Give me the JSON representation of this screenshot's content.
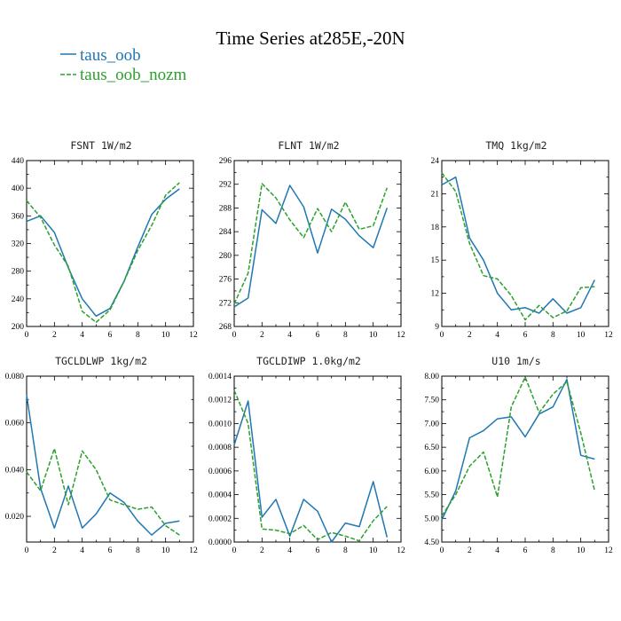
{
  "figure": {
    "title": "Time Series at285E,-20N"
  },
  "legend": [
    {
      "name": "taus_oob",
      "color": "#1f77b4",
      "dashed": false
    },
    {
      "name": "taus_oob_nozm",
      "color": "#2ca02c",
      "dashed": true
    }
  ],
  "chart_data": [
    {
      "type": "line",
      "title": "FSNT   1W/m2",
      "x": [
        0,
        1,
        2,
        3,
        4,
        5,
        6,
        7,
        8,
        9,
        10,
        11
      ],
      "xlim": [
        0,
        12
      ],
      "xticks": [
        0,
        2,
        4,
        6,
        8,
        10,
        12
      ],
      "ylim": [
        200,
        440
      ],
      "yticks": [
        200,
        240,
        280,
        320,
        360,
        400,
        440
      ],
      "ytick_labels": [
        "200",
        "240",
        "280",
        "320",
        "360",
        "400",
        "440"
      ],
      "series": [
        {
          "name": "taus_oob",
          "values": [
            352,
            360,
            336,
            285,
            240,
            215,
            226,
            265,
            315,
            362,
            384,
            399
          ]
        },
        {
          "name": "taus_oob_nozm",
          "values": [
            382,
            358,
            318,
            287,
            222,
            206,
            224,
            265,
            310,
            346,
            390,
            408
          ]
        }
      ]
    },
    {
      "type": "line",
      "title": "FLNT   1W/m2",
      "x": [
        0,
        1,
        2,
        3,
        4,
        5,
        6,
        7,
        8,
        9,
        10,
        11
      ],
      "xlim": [
        0,
        12
      ],
      "xticks": [
        0,
        2,
        4,
        6,
        8,
        10,
        12
      ],
      "ylim": [
        268,
        296
      ],
      "yticks": [
        268,
        272,
        276,
        280,
        284,
        288,
        292,
        296
      ],
      "ytick_labels": [
        "268",
        "272",
        "276",
        "280",
        "284",
        "288",
        "292",
        "296"
      ],
      "series": [
        {
          "name": "taus_oob",
          "values": [
            271.3,
            272.8,
            287.7,
            285.4,
            291.8,
            288.2,
            280.4,
            287.8,
            286.1,
            283.3,
            281.3,
            288.0
          ]
        },
        {
          "name": "taus_oob_nozm",
          "values": [
            271.8,
            277.0,
            292.1,
            289.7,
            286.0,
            283.0,
            287.9,
            284.0,
            289.0,
            284.4,
            285.0,
            291.4
          ]
        }
      ]
    },
    {
      "type": "line",
      "title": "TMQ   1kg/m2",
      "x": [
        0,
        1,
        2,
        3,
        4,
        5,
        6,
        7,
        8,
        9,
        10,
        11
      ],
      "xlim": [
        0,
        12
      ],
      "xticks": [
        0,
        2,
        4,
        6,
        8,
        10,
        12
      ],
      "ylim": [
        9,
        24
      ],
      "yticks": [
        9,
        12,
        15,
        18,
        21,
        24
      ],
      "ytick_labels": [
        "9",
        "12",
        "15",
        "18",
        "21",
        "24"
      ],
      "series": [
        {
          "name": "taus_oob",
          "values": [
            21.8,
            22.5,
            17.0,
            15.0,
            12.0,
            10.5,
            10.7,
            10.2,
            11.5,
            10.2,
            10.7,
            13.2
          ]
        },
        {
          "name": "taus_oob_nozm",
          "values": [
            22.9,
            21.2,
            16.5,
            13.6,
            13.3,
            11.8,
            9.6,
            10.9,
            9.8,
            10.4,
            12.5,
            12.6
          ]
        }
      ]
    },
    {
      "type": "line",
      "title": "TGCLDLWP   1kg/m2",
      "x": [
        0,
        1,
        2,
        3,
        4,
        5,
        6,
        7,
        8,
        9,
        10,
        11
      ],
      "xlim": [
        0,
        12
      ],
      "xticks": [
        0,
        2,
        4,
        6,
        8,
        10,
        12
      ],
      "ylim": [
        0.009,
        0.08
      ],
      "yticks": [
        0.02,
        0.04,
        0.06,
        0.08
      ],
      "ytick_labels": [
        "0.020",
        "0.040",
        "0.060",
        "0.080"
      ],
      "series": [
        {
          "name": "taus_oob",
          "values": [
            0.072,
            0.032,
            0.015,
            0.033,
            0.015,
            0.021,
            0.03,
            0.026,
            0.018,
            0.012,
            0.017,
            0.018
          ]
        },
        {
          "name": "taus_oob_nozm",
          "values": [
            0.039,
            0.031,
            0.049,
            0.025,
            0.048,
            0.04,
            0.027,
            0.025,
            0.023,
            0.024,
            0.016,
            0.012
          ]
        }
      ]
    },
    {
      "type": "line",
      "title": "TGCLDIWP   1.0kg/m2",
      "x": [
        0,
        1,
        2,
        3,
        4,
        5,
        6,
        7,
        8,
        9,
        10,
        11
      ],
      "xlim": [
        0,
        12
      ],
      "xticks": [
        0,
        2,
        4,
        6,
        8,
        10,
        12
      ],
      "ylim": [
        0,
        0.0014
      ],
      "yticks": [
        0,
        0.0002,
        0.0004,
        0.0006,
        0.0008,
        0.001,
        0.0012,
        0.0014
      ],
      "ytick_labels": [
        "0.0000",
        "0.0002",
        "0.0004",
        "0.0006",
        "0.0008",
        "0.0010",
        "0.0012",
        "0.0014"
      ],
      "series": [
        {
          "name": "taus_oob",
          "values": [
            0.00082,
            0.00119,
            0.00021,
            0.00036,
            5e-05,
            0.00036,
            0.00026,
            0.0,
            0.00016,
            0.00013,
            0.00051,
            4e-05
          ]
        },
        {
          "name": "taus_oob_nozm",
          "values": [
            0.00128,
            0.001,
            0.00011,
            0.0001,
            7e-05,
            0.00014,
            2e-05,
            8e-05,
            5e-05,
            1e-05,
            0.00018,
            0.0003
          ]
        }
      ]
    },
    {
      "type": "line",
      "title": "U10   1m/s",
      "x": [
        0,
        1,
        2,
        3,
        4,
        5,
        6,
        7,
        8,
        9,
        10,
        11
      ],
      "xlim": [
        0,
        12
      ],
      "xticks": [
        0,
        2,
        4,
        6,
        8,
        10,
        12
      ],
      "ylim": [
        4.5,
        8.0
      ],
      "yticks": [
        4.5,
        5.0,
        5.5,
        6.0,
        6.5,
        7.0,
        7.5,
        8.0
      ],
      "ytick_labels": [
        "4.50",
        "5.00",
        "5.50",
        "6.00",
        "6.50",
        "7.00",
        "7.50",
        "8.00"
      ],
      "series": [
        {
          "name": "taus_oob",
          "values": [
            4.97,
            5.58,
            6.7,
            6.85,
            7.1,
            7.14,
            6.72,
            7.2,
            7.35,
            7.93,
            6.33,
            6.25
          ]
        },
        {
          "name": "taus_oob_nozm",
          "values": [
            5.05,
            5.5,
            6.1,
            6.4,
            5.45,
            7.35,
            7.98,
            7.23,
            7.62,
            7.88,
            6.8,
            5.58
          ]
        }
      ]
    }
  ]
}
